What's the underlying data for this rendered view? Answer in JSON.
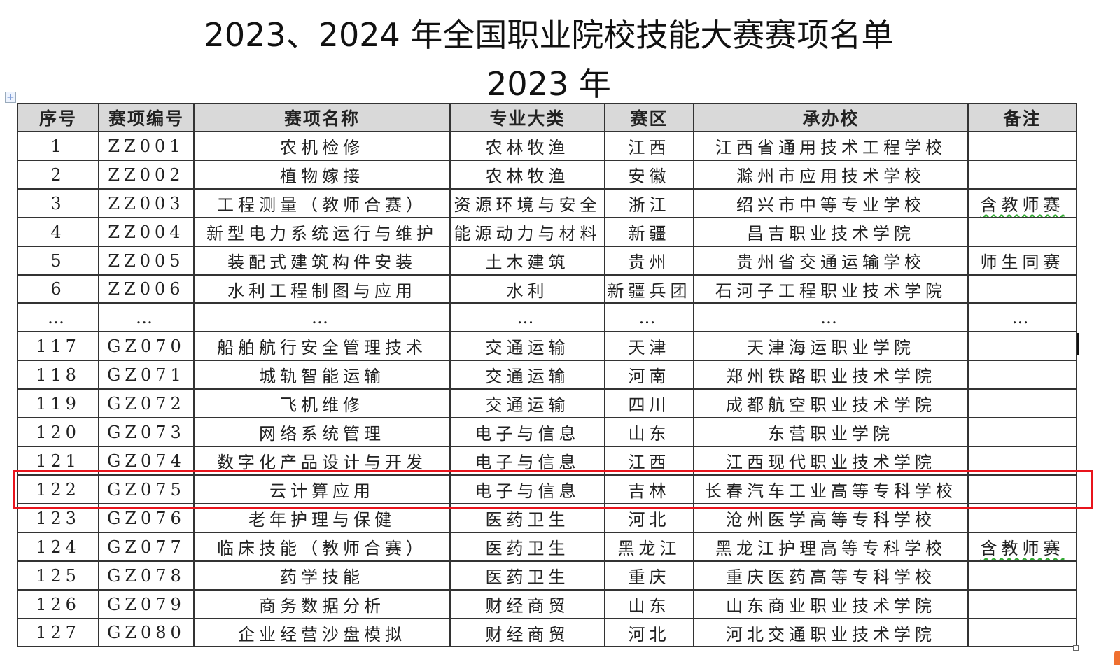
{
  "title": "2023、2024 年全国职业院校技能大赛赛项名单",
  "subtitle": "2023 年",
  "table": {
    "headers": [
      "序号",
      "赛项编号",
      "赛项名称",
      "专业大类",
      "赛区",
      "承办校",
      "备注"
    ],
    "rows": [
      [
        "1",
        "ZZ001",
        "农机检修",
        "农林牧渔",
        "江西",
        "江西省通用技术工程学校",
        ""
      ],
      [
        "2",
        "ZZ002",
        "植物嫁接",
        "农林牧渔",
        "安徽",
        "滁州市应用技术学校",
        ""
      ],
      [
        "3",
        "ZZ003",
        "工程测量（教师合赛）",
        "资源环境与安全",
        "浙江",
        "绍兴市中等专业学校",
        "含教师赛"
      ],
      [
        "4",
        "ZZ004",
        "新型电力系统运行与维护",
        "能源动力与材料",
        "新疆",
        "昌吉职业技术学院",
        ""
      ],
      [
        "5",
        "ZZ005",
        "装配式建筑构件安装",
        "土木建筑",
        "贵州",
        "贵州省交通运输学校",
        "师生同赛"
      ],
      [
        "6",
        "ZZ006",
        "水利工程制图与应用",
        "水利",
        "新疆兵团",
        "石河子工程职业技术学院",
        ""
      ],
      [
        "…",
        "…",
        "…",
        "…",
        "…",
        "…",
        "…"
      ],
      [
        "117",
        "GZ070",
        "船舶航行安全管理技术",
        "交通运输",
        "天津",
        "天津海运职业学院",
        ""
      ],
      [
        "118",
        "GZ071",
        "城轨智能运输",
        "交通运输",
        "河南",
        "郑州铁路职业技术学院",
        ""
      ],
      [
        "119",
        "GZ072",
        "飞机维修",
        "交通运输",
        "四川",
        "成都航空职业技术学院",
        ""
      ],
      [
        "120",
        "GZ073",
        "网络系统管理",
        "电子与信息",
        "山东",
        "东营职业学院",
        ""
      ],
      [
        "121",
        "GZ074",
        "数字化产品设计与开发",
        "电子与信息",
        "江西",
        "江西现代职业技术学院",
        ""
      ],
      [
        "122",
        "GZ075",
        "云计算应用",
        "电子与信息",
        "吉林",
        "长春汽车工业高等专科学校",
        ""
      ],
      [
        "123",
        "GZ076",
        "老年护理与保健",
        "医药卫生",
        "河北",
        "沧州医学高等专科学校",
        ""
      ],
      [
        "124",
        "GZ077",
        "临床技能（教师合赛）",
        "医药卫生",
        "黑龙江",
        "黑龙江护理高等专科学校",
        "含教师赛"
      ],
      [
        "125",
        "GZ078",
        "药学技能",
        "医药卫生",
        "重庆",
        "重庆医药高等专科学校",
        ""
      ],
      [
        "126",
        "GZ079",
        "商务数据分析",
        "财经商贸",
        "山东",
        "山东商业职业技术学院",
        ""
      ],
      [
        "127",
        "GZ080",
        "企业经营沙盘模拟",
        "财经商贸",
        "河北",
        "河北交通职业技术学院",
        ""
      ]
    ],
    "highlighted_row": "122"
  },
  "colors": {
    "highlight": "#e8141c",
    "header_bg": "#d9d9d9",
    "spellcheck": "#33aa33"
  },
  "icons": {
    "table_move_handle": "move-cross-icon"
  }
}
